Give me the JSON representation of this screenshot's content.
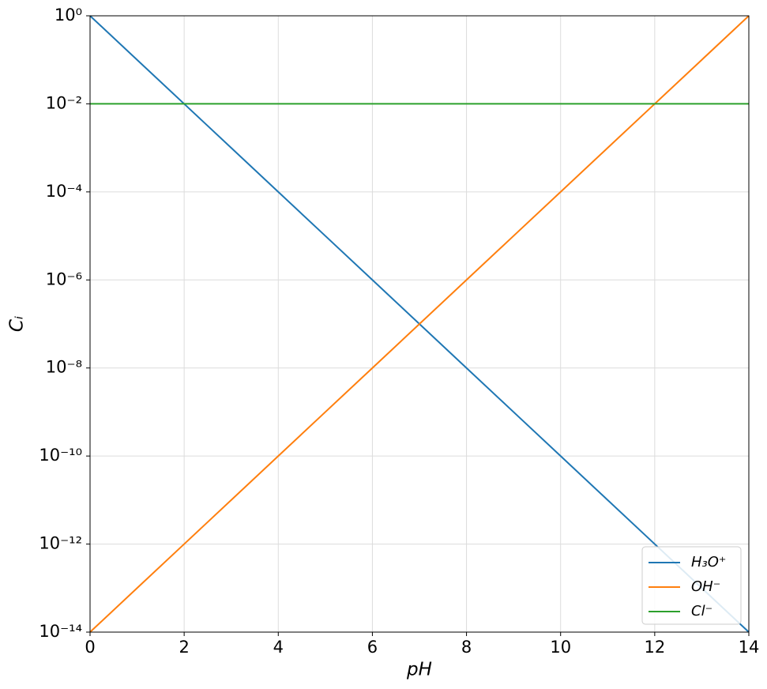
{
  "chart_data": {
    "type": "line",
    "x_label": "pH",
    "y_label": "Cᵢ",
    "x": [
      0,
      1,
      2,
      3,
      4,
      5,
      6,
      7,
      8,
      9,
      10,
      11,
      12,
      13,
      14
    ],
    "series": [
      {
        "name": "H₃O⁺",
        "color": "#1f77b4",
        "values": [
          1,
          0.1,
          0.01,
          0.001,
          0.0001,
          1e-05,
          1e-06,
          1e-07,
          1e-08,
          1e-09,
          1e-10,
          1e-11,
          1e-12,
          1e-13,
          1e-14
        ]
      },
      {
        "name": "OH⁻",
        "color": "#ff7f0e",
        "values": [
          1e-14,
          1e-13,
          1e-12,
          1e-11,
          1e-10,
          1e-09,
          1e-08,
          1e-07,
          1e-06,
          1e-05,
          0.0001,
          0.001,
          0.01,
          0.1,
          1
        ]
      },
      {
        "name": "Cl⁻",
        "color": "#2ca02c",
        "values": [
          0.01,
          0.01,
          0.01,
          0.01,
          0.01,
          0.01,
          0.01,
          0.01,
          0.01,
          0.01,
          0.01,
          0.01,
          0.01,
          0.01,
          0.01
        ]
      }
    ],
    "xlim": [
      0,
      14
    ],
    "xticks": [
      0,
      2,
      4,
      6,
      8,
      10,
      12,
      14
    ],
    "ylim": [
      1e-14,
      1
    ],
    "y_scale": "log",
    "yticks": [
      {
        "value": 1e-14,
        "label": "10⁻¹⁴"
      },
      {
        "value": 1e-12,
        "label": "10⁻¹²"
      },
      {
        "value": 1e-10,
        "label": "10⁻¹⁰"
      },
      {
        "value": 1e-08,
        "label": "10⁻⁸"
      },
      {
        "value": 1e-06,
        "label": "10⁻⁶"
      },
      {
        "value": 0.0001,
        "label": "10⁻⁴"
      },
      {
        "value": 0.01,
        "label": "10⁻²"
      },
      {
        "value": 1,
        "label": "10⁰"
      }
    ],
    "grid": true,
    "legend": "lower right"
  }
}
